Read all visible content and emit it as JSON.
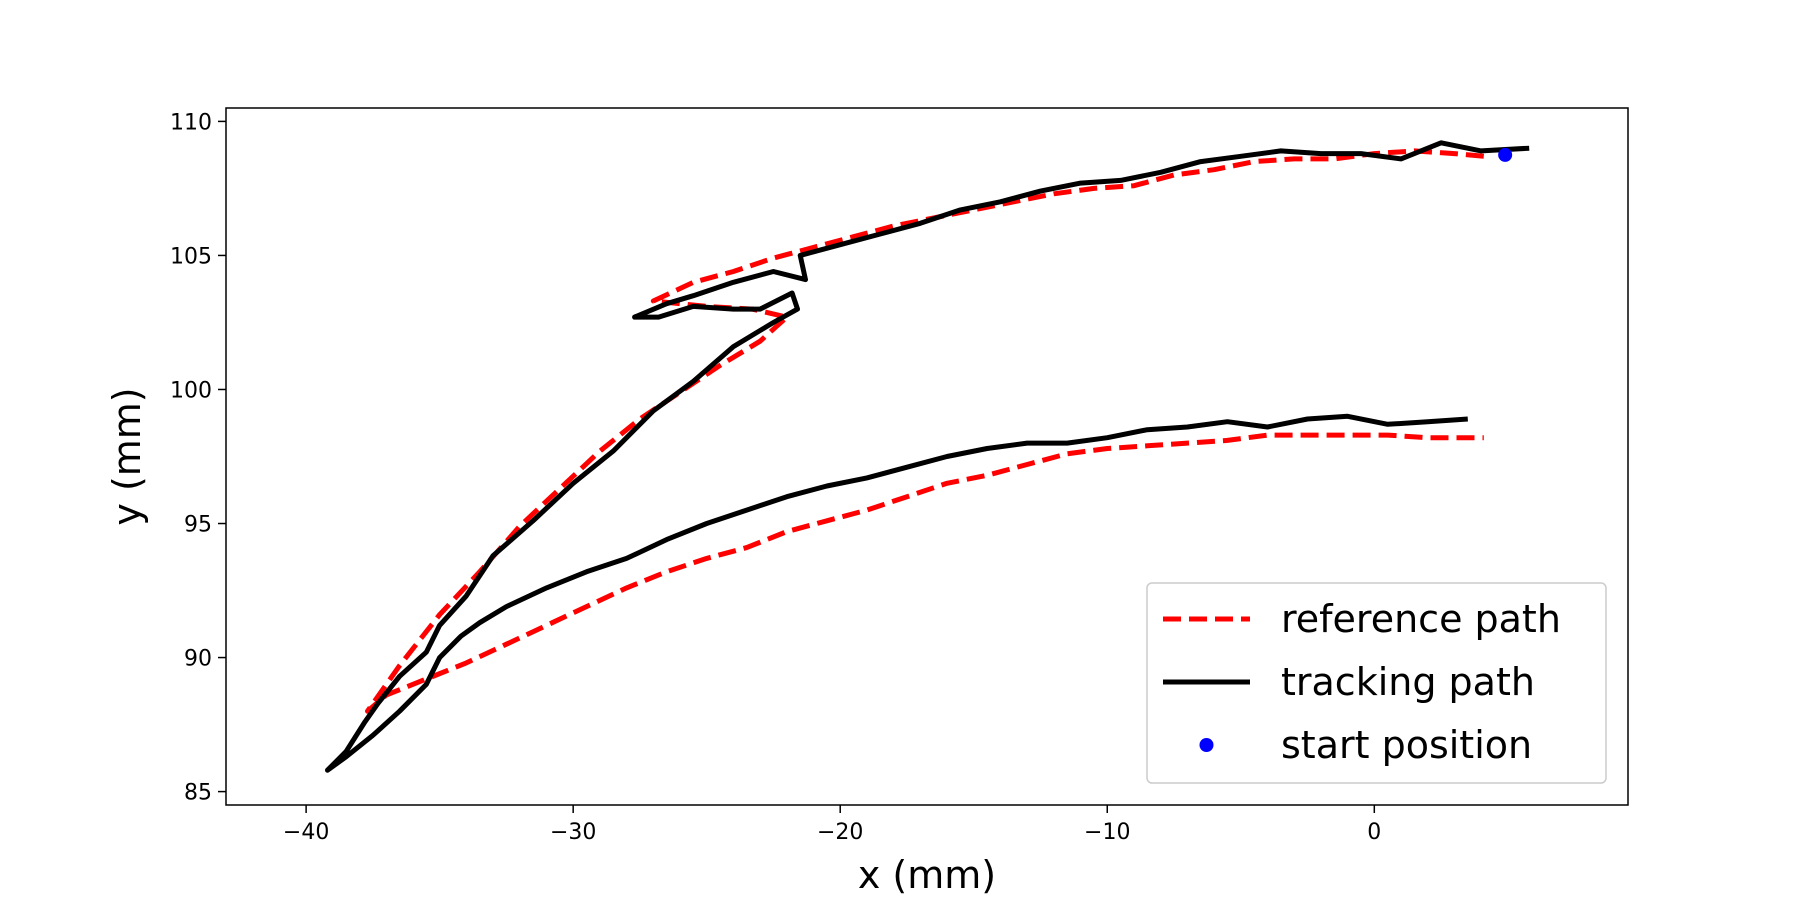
{
  "chart_data": {
    "type": "line",
    "title": "",
    "xlabel": "x (mm)",
    "ylabel": "y (mm)",
    "xlim": [
      -43,
      9.5
    ],
    "ylim": [
      84.5,
      110.5
    ],
    "xticks": [
      -40,
      -30,
      -20,
      -10,
      0
    ],
    "yticks": [
      85,
      90,
      95,
      100,
      105,
      110
    ],
    "xtick_labels": [
      "−40",
      "−30",
      "−20",
      "−10",
      "0"
    ],
    "ytick_labels": [
      "85",
      "90",
      "95",
      "100",
      "105",
      "110"
    ],
    "grid": false,
    "legend_position": "lower-right",
    "series": [
      {
        "name": "reference path",
        "style": "dashed",
        "color": "#ff0000",
        "x": [
          4.1,
          3.0,
          1.5,
          0.0,
          -1.5,
          -3.0,
          -4.5,
          -6.0,
          -7.5,
          -9.0,
          -10.5,
          -12.0,
          -13.5,
          -15.0,
          -16.5,
          -18.0,
          -19.5,
          -21.0,
          -22.5,
          -24.0,
          -25.5,
          -27.0,
          -25.0,
          -23.3,
          -22.0,
          -23.0,
          -24.5,
          -26.0,
          -27.5,
          -29.0,
          -30.5,
          -32.0,
          -33.5,
          -35.0,
          -36.5,
          -37.7,
          -37.0,
          -35.5,
          -34.0,
          -32.5,
          -31.0,
          -29.5,
          -28.0,
          -26.5,
          -25.0,
          -23.5,
          -22.0,
          -20.5,
          -19.0,
          -17.5,
          -16.0,
          -14.5,
          -13.0,
          -11.5,
          -10.0,
          -8.5,
          -7.0,
          -5.5,
          -4.0,
          -2.5,
          -1.0,
          0.5,
          2.0,
          4.1
        ],
        "y": [
          108.7,
          108.8,
          108.9,
          108.8,
          108.6,
          108.6,
          108.5,
          108.2,
          108.0,
          107.6,
          107.5,
          107.3,
          107.0,
          106.7,
          106.4,
          106.1,
          105.7,
          105.3,
          104.9,
          104.4,
          104.0,
          103.3,
          103.1,
          103.0,
          102.7,
          101.8,
          100.9,
          99.9,
          98.9,
          97.7,
          96.3,
          94.9,
          93.2,
          91.6,
          89.7,
          88.0,
          88.6,
          89.2,
          89.8,
          90.5,
          91.2,
          91.9,
          92.6,
          93.2,
          93.7,
          94.1,
          94.7,
          95.1,
          95.5,
          96.0,
          96.5,
          96.8,
          97.2,
          97.6,
          97.8,
          97.9,
          98.0,
          98.1,
          98.3,
          98.3,
          98.3,
          98.3,
          98.2,
          98.2
        ]
      },
      {
        "name": "tracking path",
        "style": "solid",
        "color": "#000000",
        "x": [
          5.8,
          4.0,
          2.5,
          1.0,
          -0.5,
          -2.0,
          -3.5,
          -5.0,
          -6.5,
          -8.0,
          -9.5,
          -11.0,
          -12.5,
          -14.0,
          -15.5,
          -17.0,
          -18.5,
          -20.0,
          -21.5,
          -21.3,
          -22.5,
          -24.0,
          -25.5,
          -26.5,
          -27.7,
          -26.8,
          -25.5,
          -24.0,
          -23.0,
          -21.8,
          -21.6,
          -22.5,
          -24.0,
          -25.5,
          -27.0,
          -28.5,
          -30.0,
          -31.5,
          -33.0,
          -34.0,
          -35.0,
          -35.5,
          -36.5,
          -37.3,
          -37.8,
          -38.5,
          -39.2,
          -38.5,
          -37.5,
          -36.5,
          -35.5,
          -35.0,
          -34.2,
          -33.5,
          -32.5,
          -31.0,
          -29.5,
          -28.0,
          -26.5,
          -25.0,
          -23.5,
          -22.0,
          -20.5,
          -19.0,
          -17.5,
          -16.0,
          -14.5,
          -13.0,
          -11.5,
          -10.0,
          -8.5,
          -7.0,
          -5.5,
          -4.0,
          -2.5,
          -1.0,
          0.5,
          2.0,
          3.5
        ],
        "y": [
          109.0,
          108.9,
          109.2,
          108.6,
          108.8,
          108.8,
          108.9,
          108.7,
          108.5,
          108.1,
          107.8,
          107.7,
          107.4,
          107.0,
          106.7,
          106.2,
          105.8,
          105.4,
          105.0,
          104.1,
          104.4,
          104.0,
          103.5,
          103.2,
          102.7,
          102.7,
          103.1,
          103.0,
          103.0,
          103.6,
          103.0,
          102.5,
          101.6,
          100.3,
          99.2,
          97.7,
          96.5,
          95.1,
          93.8,
          92.3,
          91.2,
          90.2,
          89.3,
          88.3,
          87.6,
          86.5,
          85.8,
          86.3,
          87.1,
          88.0,
          89.0,
          90.0,
          90.8,
          91.3,
          91.9,
          92.6,
          93.2,
          93.7,
          94.4,
          95.0,
          95.5,
          96.0,
          96.4,
          96.7,
          97.1,
          97.5,
          97.8,
          98.0,
          98.0,
          98.2,
          98.5,
          98.6,
          98.8,
          98.6,
          98.9,
          99.0,
          98.7,
          98.8,
          98.9
        ]
      },
      {
        "name": "start position",
        "style": "marker",
        "color": "#0000ff",
        "x": [
          4.9
        ],
        "y": [
          108.75
        ]
      }
    ]
  }
}
